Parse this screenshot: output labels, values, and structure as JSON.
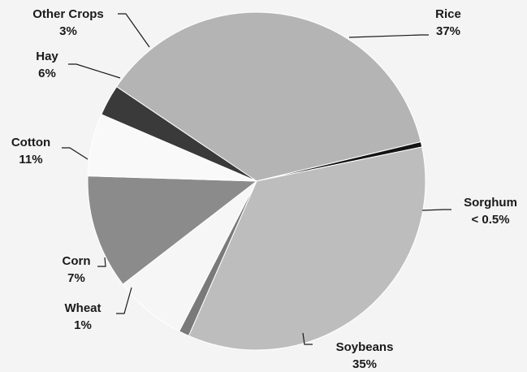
{
  "chart_data": {
    "type": "pie",
    "title": "",
    "start": "Rice at top, clockwise",
    "slices": [
      {
        "name": "Rice",
        "value": 37,
        "label_value": "37%",
        "color": "#b4b4b4"
      },
      {
        "name": "Sorghum",
        "value": 0.5,
        "label_value": "< 0.5%",
        "color": "#141414"
      },
      {
        "name": "Soybeans",
        "value": 35,
        "label_value": "35%",
        "color": "#bdbdbd"
      },
      {
        "name": "Wheat",
        "value": 1,
        "label_value": "1%",
        "color": "#7a7a7a"
      },
      {
        "name": "Corn",
        "value": 7,
        "label_value": "7%",
        "color": "#f6f6f6"
      },
      {
        "name": "Cotton",
        "value": 11,
        "label_value": "11%",
        "color": "#8b8b8b"
      },
      {
        "name": "Hay",
        "value": 6,
        "label_value": "6%",
        "color": "#f9f9f9"
      },
      {
        "name": "Other Crops",
        "value": 3,
        "label_value": "3%",
        "color": "#3a3a3a"
      }
    ]
  }
}
